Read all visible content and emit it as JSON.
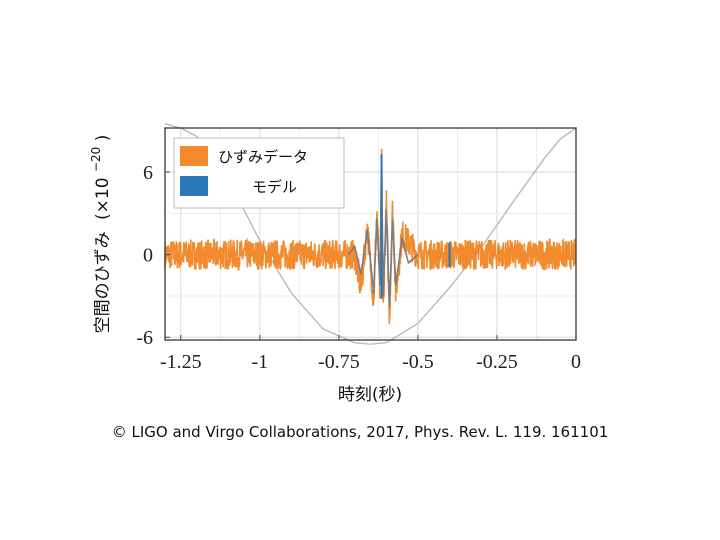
{
  "chart_data": {
    "type": "line",
    "title": "",
    "xlabel": "時刻(秒)",
    "ylabel": "空間のひずみ",
    "ylabel_scale": "(×10",
    "ylabel_exponent": "−20",
    "ylabel_close": ")",
    "xlim": [
      -1.3,
      0.0
    ],
    "ylim": [
      -6.2,
      9.2
    ],
    "xticks": [
      -1.25,
      -1.0,
      -0.75,
      -0.5,
      -0.25,
      0.0
    ],
    "xtick_labels": [
      "-1.25",
      "-1",
      "-0.75",
      "-0.5",
      "-0.25",
      "0"
    ],
    "yticks": [
      -6,
      0,
      6
    ],
    "ytick_labels": [
      "-6",
      "0",
      "6"
    ],
    "grid": true,
    "legend_position": "top-left",
    "series": [
      {
        "name": "ひずみデータ",
        "color": "#f28a2e",
        "noise_amplitude": 1.1,
        "x": [
          -1.3,
          -0.7,
          -0.68,
          -0.66,
          -0.64,
          -0.63,
          -0.62,
          -0.615,
          -0.61,
          -0.6,
          -0.59,
          -0.58,
          -0.57,
          -0.55,
          -0.5,
          0.0
        ],
        "y": [
          0,
          0,
          -2.5,
          2.0,
          -3.5,
          3.2,
          -2.8,
          7.5,
          -4.2,
          3.8,
          -4.6,
          3.5,
          -2.8,
          1.5,
          0,
          0
        ]
      },
      {
        "name": "モデル",
        "color": "#2a78b8",
        "x": [
          -0.72,
          -0.7,
          -0.68,
          -0.66,
          -0.64,
          -0.63,
          -0.62,
          -0.615,
          -0.61,
          -0.6,
          -0.59,
          -0.58,
          -0.57,
          -0.55,
          -0.53,
          -0.5
        ],
        "y": [
          0,
          0.6,
          -1.4,
          1.8,
          -2.8,
          2.6,
          -2.2,
          7.2,
          -3.0,
          3.2,
          -3.8,
          2.6,
          -2.2,
          1.2,
          -0.6,
          0
        ]
      },
      {
        "name": "",
        "color": "#b5b5b5",
        "style": "envelope",
        "x": [
          -1.3,
          -1.25,
          -1.2,
          -1.1,
          -1.0,
          -0.9,
          -0.8,
          -0.7,
          -0.65,
          -0.6,
          -0.5,
          -0.4,
          -0.3,
          -0.2,
          -0.1,
          -0.05,
          0.0
        ],
        "y": [
          9.5,
          9.2,
          8.6,
          5.5,
          1.0,
          -2.8,
          -5.4,
          -6.4,
          -6.5,
          -6.4,
          -5.0,
          -2.4,
          0.5,
          3.8,
          7.0,
          8.4,
          9.2
        ]
      }
    ]
  },
  "credit": "© LIGO and Virgo Collaborations, 2017, Phys. Rev. L. 119. 161101"
}
